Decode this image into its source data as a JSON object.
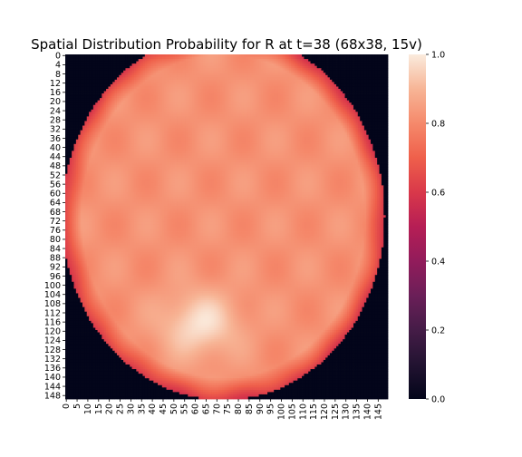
{
  "chart_data": {
    "type": "heatmap",
    "title": "Spatial Distribution Probability for R at t=38 (68x38, 15v)",
    "xlabel": "",
    "ylabel": "",
    "grid_size": 150,
    "x_tick_labels": [
      "0",
      "5",
      "10",
      "15",
      "20",
      "25",
      "30",
      "35",
      "40",
      "45",
      "50",
      "55",
      "60",
      "65",
      "70",
      "75",
      "80",
      "85",
      "90",
      "95",
      "100",
      "105",
      "110",
      "115",
      "120",
      "125",
      "130",
      "135",
      "140",
      "145"
    ],
    "y_tick_labels": [
      "0",
      "4",
      "8",
      "12",
      "16",
      "20",
      "24",
      "28",
      "32",
      "36",
      "40",
      "44",
      "48",
      "52",
      "56",
      "60",
      "64",
      "68",
      "72",
      "76",
      "80",
      "84",
      "88",
      "92",
      "96",
      "100",
      "104",
      "108",
      "112",
      "116",
      "120",
      "124",
      "128",
      "132",
      "136",
      "140",
      "144",
      "148"
    ],
    "colorbar": {
      "colormap": "rocket",
      "range": [
        0.0,
        1.0
      ],
      "tick_labels": [
        "0.0",
        "0.2",
        "0.4",
        "0.6",
        "0.8",
        "1.0"
      ]
    },
    "region": {
      "shape": "roughly circular blob",
      "center_col": 73,
      "center_row": 70,
      "radius_cols": 75,
      "radius_rows": 80,
      "outside_value": 0.0,
      "edge_value": 0.6,
      "typical_interior_value": 0.82,
      "peak_value": 0.98,
      "peak_location_col": 62,
      "peak_location_row": 117
    }
  }
}
